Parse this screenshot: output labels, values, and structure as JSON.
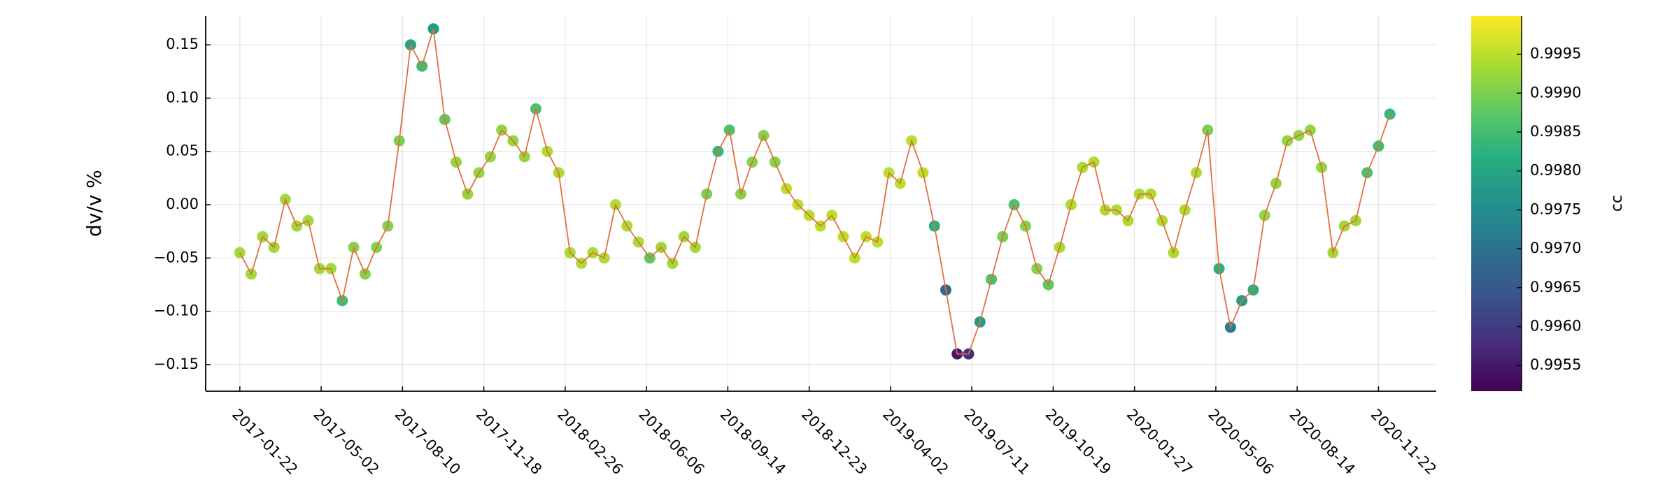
{
  "chart_data": {
    "type": "scatter-line",
    "y_label": "dv/v %",
    "colorbar_label": "cc",
    "cmap": "viridis",
    "line_color": "#e1703f",
    "grid": true,
    "x": [
      "2017-01-22",
      "2017-02-05",
      "2017-02-19",
      "2017-03-05",
      "2017-03-19",
      "2017-04-02",
      "2017-04-16",
      "2017-04-30",
      "2017-05-14",
      "2017-05-28",
      "2017-06-11",
      "2017-06-25",
      "2017-07-09",
      "2017-07-23",
      "2017-08-06",
      "2017-08-20",
      "2017-09-03",
      "2017-09-17",
      "2017-10-01",
      "2017-10-15",
      "2017-10-29",
      "2017-11-12",
      "2017-11-26",
      "2017-12-10",
      "2017-12-24",
      "2018-01-07",
      "2018-01-21",
      "2018-02-04",
      "2018-02-18",
      "2018-03-04",
      "2018-03-18",
      "2018-04-01",
      "2018-04-15",
      "2018-04-29",
      "2018-05-13",
      "2018-05-27",
      "2018-06-10",
      "2018-06-24",
      "2018-07-08",
      "2018-07-22",
      "2018-08-05",
      "2018-08-19",
      "2018-09-02",
      "2018-09-16",
      "2018-09-30",
      "2018-10-14",
      "2018-10-28",
      "2018-11-11",
      "2018-11-25",
      "2018-12-09",
      "2018-12-23",
      "2019-01-06",
      "2019-01-20",
      "2019-02-03",
      "2019-02-17",
      "2019-03-03",
      "2019-03-17",
      "2019-03-31",
      "2019-04-14",
      "2019-04-28",
      "2019-05-12",
      "2019-05-26",
      "2019-06-09",
      "2019-06-23",
      "2019-07-07",
      "2019-07-21",
      "2019-08-04",
      "2019-08-18",
      "2019-09-01",
      "2019-09-15",
      "2019-09-29",
      "2019-10-13",
      "2019-10-27",
      "2019-11-10",
      "2019-11-24",
      "2019-12-08",
      "2019-12-22",
      "2020-01-05",
      "2020-01-19",
      "2020-02-02",
      "2020-02-16",
      "2020-03-01",
      "2020-03-15",
      "2020-03-29",
      "2020-04-12",
      "2020-04-26",
      "2020-05-10",
      "2020-05-24",
      "2020-06-07",
      "2020-06-21",
      "2020-07-05",
      "2020-07-19",
      "2020-08-02",
      "2020-08-16",
      "2020-08-30",
      "2020-09-13",
      "2020-09-27",
      "2020-10-11",
      "2020-10-25",
      "2020-11-08",
      "2020-11-22",
      "2020-12-06"
    ],
    "values": [
      -0.045,
      -0.065,
      -0.03,
      -0.04,
      0.005,
      -0.02,
      -0.015,
      -0.06,
      -0.06,
      -0.09,
      -0.04,
      -0.065,
      -0.04,
      -0.02,
      0.06,
      0.15,
      0.13,
      0.165,
      0.08,
      0.04,
      0.01,
      0.03,
      0.045,
      0.07,
      0.06,
      0.045,
      0.09,
      0.05,
      0.03,
      -0.045,
      -0.055,
      -0.045,
      -0.05,
      0.0,
      -0.02,
      -0.035,
      -0.05,
      -0.04,
      -0.055,
      -0.03,
      -0.04,
      0.01,
      0.05,
      0.07,
      0.01,
      0.04,
      0.065,
      0.04,
      0.015,
      0.0,
      -0.01,
      -0.02,
      -0.01,
      -0.03,
      -0.05,
      -0.03,
      -0.035,
      0.03,
      0.02,
      0.06,
      0.03,
      -0.02,
      -0.08,
      -0.14,
      -0.14,
      -0.11,
      -0.07,
      -0.03,
      0.0,
      -0.02,
      -0.06,
      -0.075,
      -0.04,
      0.0,
      0.035,
      0.04,
      -0.005,
      -0.005,
      -0.015,
      0.01,
      0.01,
      -0.015,
      -0.045,
      -0.005,
      0.03,
      0.07,
      -0.06,
      -0.115,
      -0.09,
      -0.08,
      -0.01,
      0.02,
      0.06,
      0.065,
      0.07,
      0.035,
      -0.045,
      -0.02,
      -0.015,
      0.03,
      0.055,
      0.085
    ],
    "color_values": [
      0.9993,
      0.9993,
      0.9993,
      0.9993,
      0.9993,
      0.9993,
      0.9993,
      0.9993,
      0.9993,
      0.9985,
      0.9991,
      0.9991,
      0.9991,
      0.9991,
      0.999,
      0.998,
      0.9985,
      0.9978,
      0.9988,
      0.9992,
      0.9992,
      0.9992,
      0.9992,
      0.9992,
      0.9992,
      0.9992,
      0.9986,
      0.9994,
      0.9994,
      0.9994,
      0.9994,
      0.9994,
      0.9994,
      0.9994,
      0.9994,
      0.9994,
      0.9988,
      0.9993,
      0.9993,
      0.9993,
      0.9993,
      0.999,
      0.9984,
      0.9986,
      0.9991,
      0.9991,
      0.9991,
      0.9991,
      0.9995,
      0.9995,
      0.9995,
      0.9995,
      0.9995,
      0.9995,
      0.9995,
      0.9995,
      0.9995,
      0.9995,
      0.9995,
      0.9995,
      0.9995,
      0.9982,
      0.9968,
      0.9955,
      0.9958,
      0.9978,
      0.9986,
      0.999,
      0.9986,
      0.9991,
      0.9991,
      0.9988,
      0.9994,
      0.9994,
      0.9994,
      0.9994,
      0.9994,
      0.9994,
      0.9994,
      0.9994,
      0.9994,
      0.9994,
      0.9994,
      0.9994,
      0.9994,
      0.999,
      0.9982,
      0.9972,
      0.9978,
      0.9982,
      0.9992,
      0.9992,
      0.9992,
      0.9992,
      0.9992,
      0.9992,
      0.9993,
      0.9993,
      0.9993,
      0.9986,
      0.9985,
      0.9984
    ],
    "xlim": [
      "2016-12-11",
      "2021-02-01"
    ],
    "xticks": [
      "2017-01-22",
      "2017-05-02",
      "2017-08-10",
      "2017-11-18",
      "2018-02-26",
      "2018-06-06",
      "2018-09-14",
      "2018-12-23",
      "2019-04-02",
      "2019-07-11",
      "2019-10-19",
      "2020-01-27",
      "2020-05-06",
      "2020-08-14",
      "2020-11-22"
    ],
    "ylim": [
      -0.175,
      0.177
    ],
    "yticks": [
      {
        "value": -0.15,
        "label": "−0.15"
      },
      {
        "value": -0.1,
        "label": "−0.10"
      },
      {
        "value": -0.05,
        "label": "−0.05"
      },
      {
        "value": 0,
        "label": "0.00"
      },
      0.05,
      {
        "value": 0.1,
        "label": "0.10"
      },
      0.15
    ],
    "clim": [
      0.99517,
      0.99999
    ],
    "cticks": [
      0.9955,
      {
        "value": 0.996,
        "label": "0.9960"
      },
      0.9965,
      {
        "value": 0.997,
        "label": "0.9970"
      },
      0.9975,
      {
        "value": 0.998,
        "label": "0.9980"
      },
      0.9985,
      {
        "value": 0.999,
        "label": "0.9990"
      },
      0.9995
    ]
  }
}
